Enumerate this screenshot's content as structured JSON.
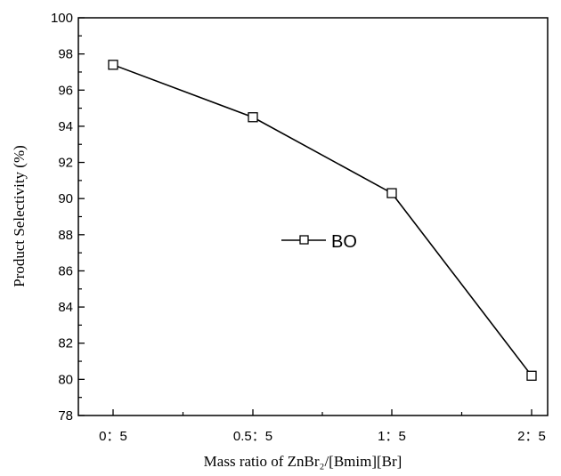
{
  "chart_data": {
    "type": "line",
    "categories": [
      "0：5",
      "0.5：5",
      "1：5",
      "2：5"
    ],
    "series": [
      {
        "name": "BO",
        "values": [
          97.4,
          94.5,
          90.3,
          80.2
        ],
        "marker": "open-square",
        "color": "#000000"
      }
    ],
    "xlabel": "Mass ratio of ZnBr₂/[Bmim][Br]",
    "ylabel": "Product Selectivity (%)",
    "ylim": [
      78,
      100
    ],
    "yticks": [
      78,
      80,
      82,
      84,
      86,
      88,
      90,
      92,
      94,
      96,
      98,
      100
    ],
    "grid": false,
    "legend_position": "center"
  }
}
